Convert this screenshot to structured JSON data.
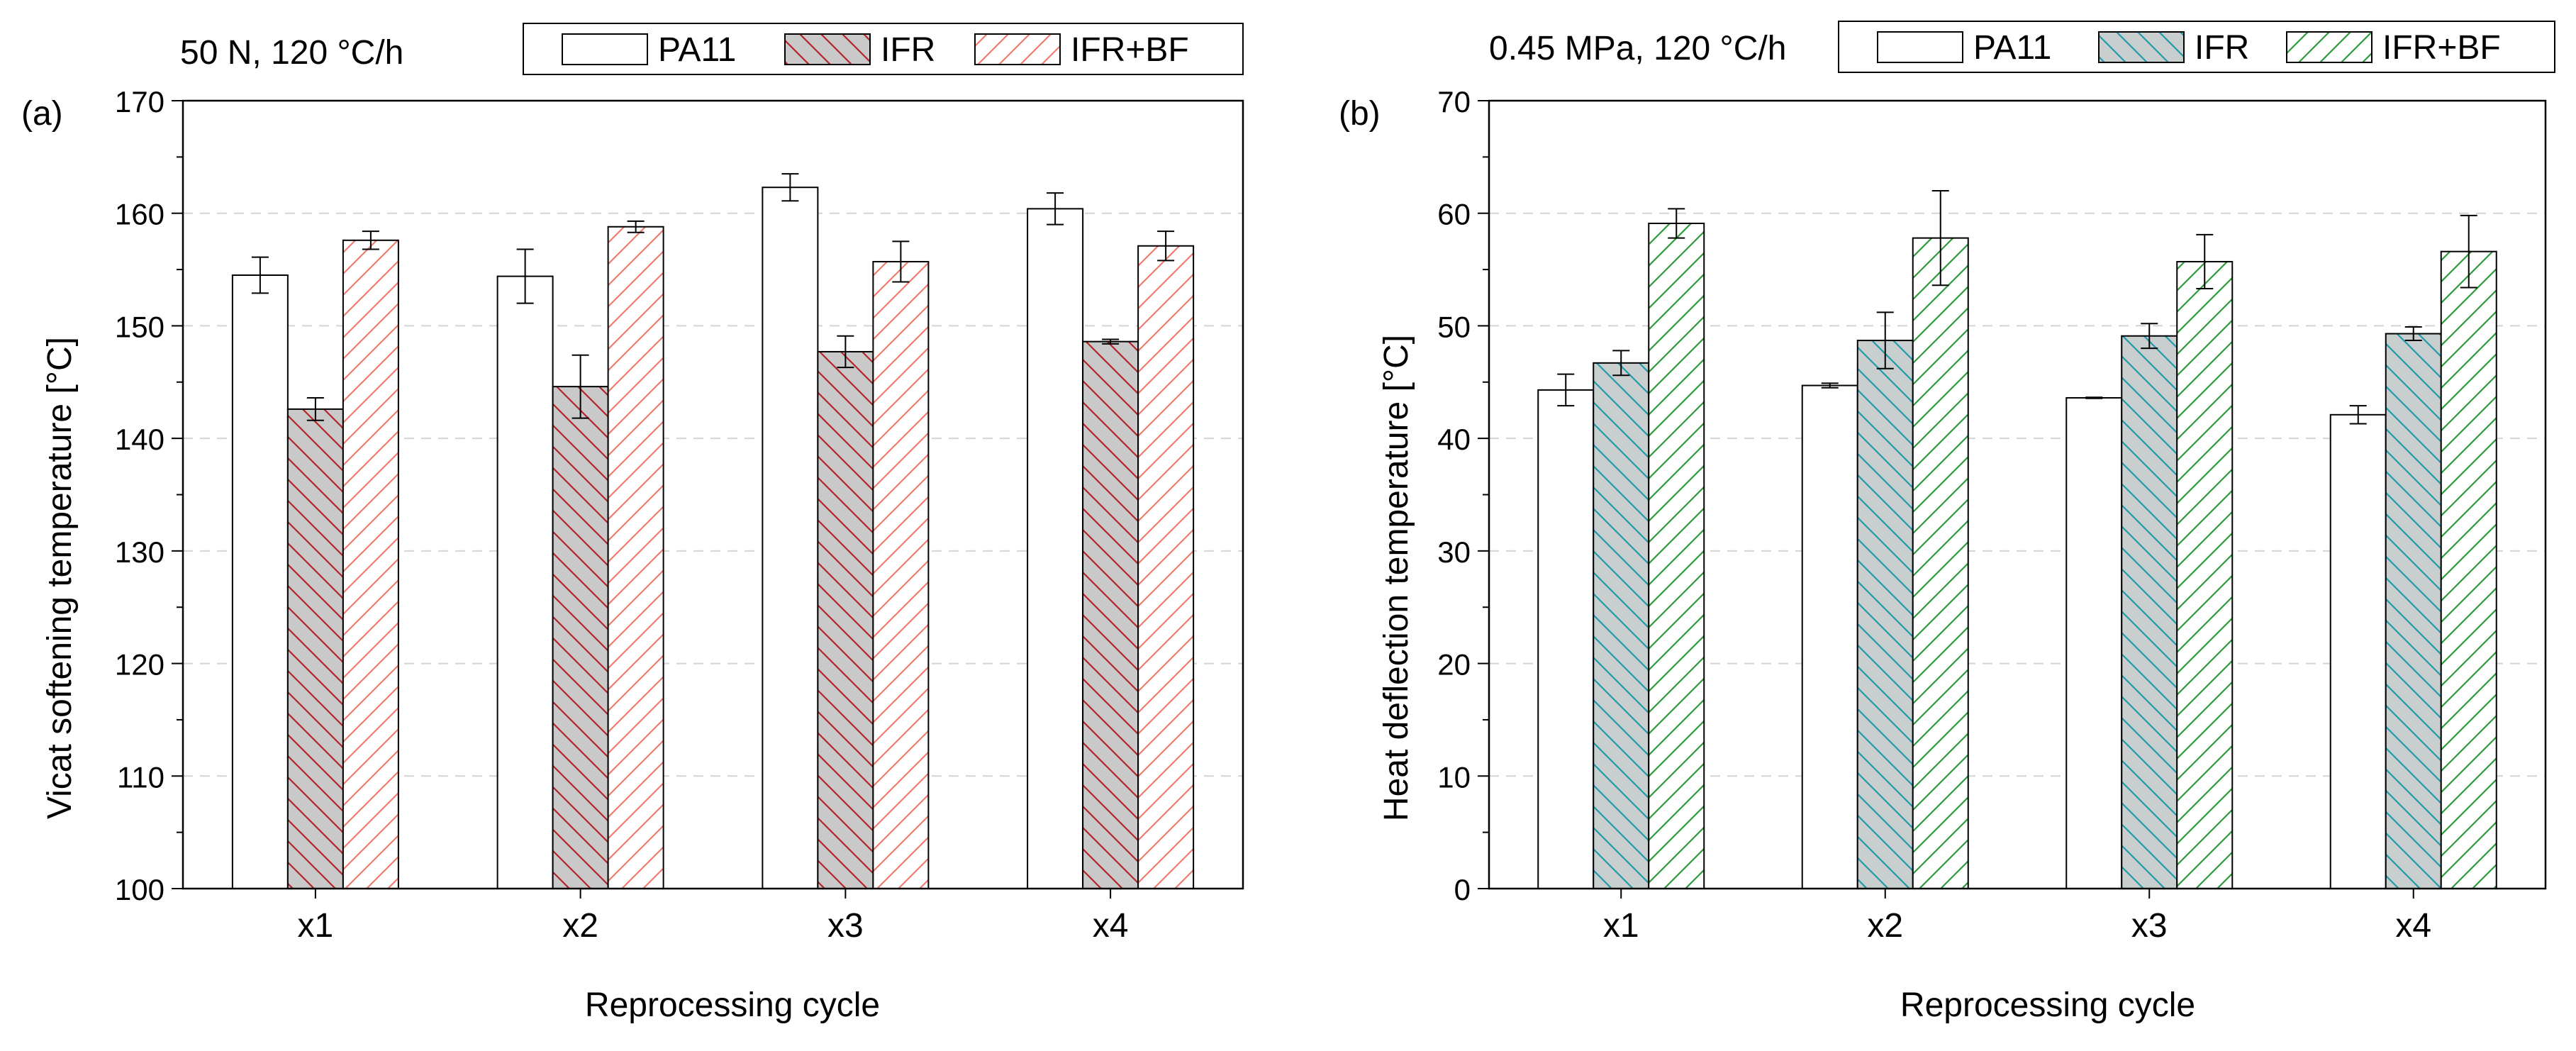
{
  "chart_data": [
    {
      "type": "bar",
      "panel_label": "(a)",
      "condition": "50 N, 120 °C/h",
      "title": "",
      "xlabel": "Reprocessing cycle",
      "ylabel": "Vicat softening temperature [°C]",
      "categories": [
        "x1",
        "x2",
        "x3",
        "x4"
      ],
      "ylim": [
        100,
        170
      ],
      "yticks": [
        100,
        110,
        120,
        130,
        140,
        150,
        160,
        170
      ],
      "grid": "horizontal dashed",
      "legend_position": "top",
      "series": [
        {
          "name": "PA11",
          "values": [
            154.5,
            154.4,
            162.3,
            160.4
          ],
          "errors": [
            1.6,
            2.4,
            1.2,
            1.4
          ],
          "fill": "#ffffff",
          "hatch": "none",
          "hatch_color": "#000000"
        },
        {
          "name": "IFR",
          "values": [
            142.6,
            144.6,
            147.7,
            148.6
          ],
          "errors": [
            1.0,
            2.8,
            1.4,
            0.2
          ],
          "fill": "#c9c9c9",
          "hatch": "backslash",
          "hatch_color": "#b1252b"
        },
        {
          "name": "IFR+BF",
          "values": [
            157.6,
            158.8,
            155.7,
            157.1
          ],
          "errors": [
            0.8,
            0.5,
            1.8,
            1.3
          ],
          "fill": "#ffffff",
          "hatch": "slash",
          "hatch_color": "#f07c6e"
        }
      ]
    },
    {
      "type": "bar",
      "panel_label": "(b)",
      "condition": "0.45 MPa, 120 °C/h",
      "title": "",
      "xlabel": "Reprocessing cycle",
      "ylabel": "Heat deflection temperature [°C]",
      "categories": [
        "x1",
        "x2",
        "x3",
        "x4"
      ],
      "ylim": [
        0,
        70
      ],
      "yticks": [
        0,
        10,
        20,
        30,
        40,
        50,
        60,
        70
      ],
      "grid": "horizontal dashed",
      "legend_position": "top",
      "series": [
        {
          "name": "PA11",
          "values": [
            44.3,
            44.7,
            43.6,
            42.1
          ],
          "errors": [
            1.4,
            0.2,
            0.05,
            0.8
          ],
          "fill": "#ffffff",
          "hatch": "none",
          "hatch_color": "#000000"
        },
        {
          "name": "IFR",
          "values": [
            46.7,
            48.7,
            49.1,
            49.3
          ],
          "errors": [
            1.1,
            2.5,
            1.1,
            0.6
          ],
          "fill": "#c9cfcf",
          "hatch": "backslash",
          "hatch_color": "#1f9bab"
        },
        {
          "name": "IFR+BF",
          "values": [
            59.1,
            57.8,
            55.7,
            56.6
          ],
          "errors": [
            1.3,
            4.2,
            2.4,
            3.2
          ],
          "fill": "#ffffff",
          "hatch": "slash",
          "hatch_color": "#2c9a3b"
        }
      ]
    }
  ]
}
